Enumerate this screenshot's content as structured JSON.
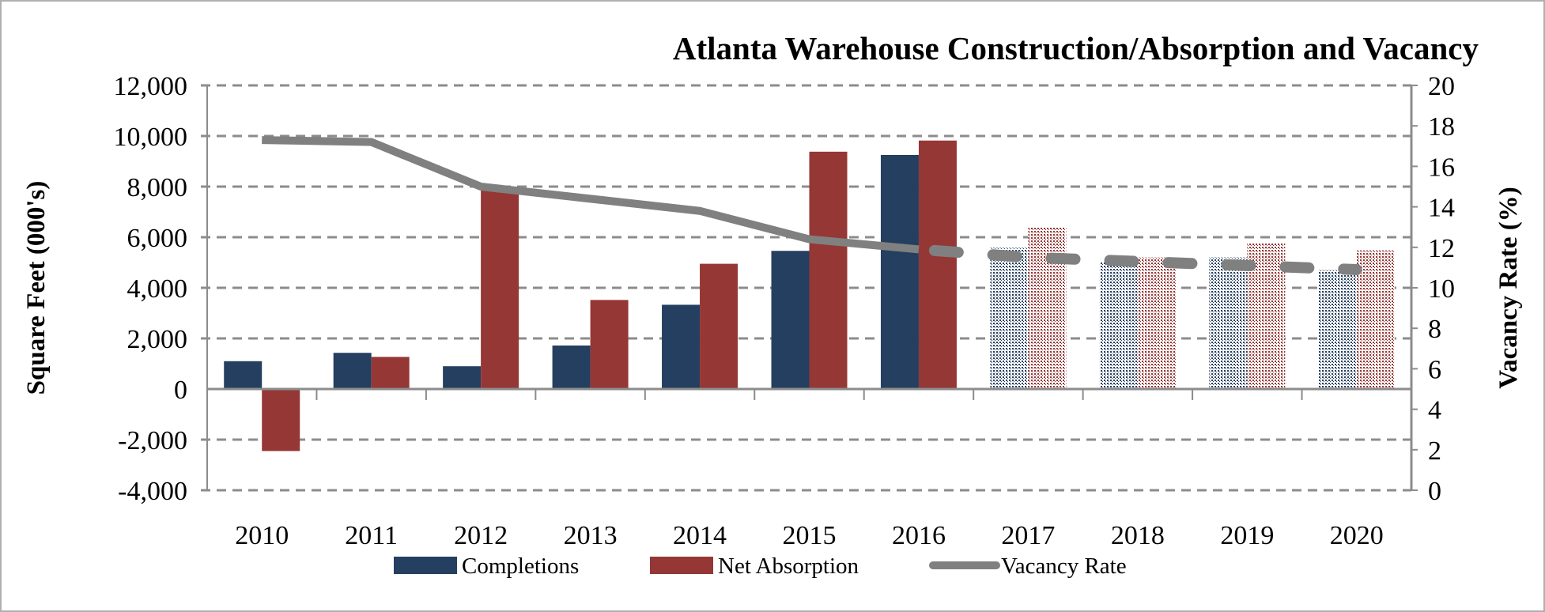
{
  "chart_data": {
    "type": "bar",
    "title": "Atlanta Warehouse Construction/Absorption and Vacancy",
    "categories": [
      "2010",
      "2011",
      "2012",
      "2013",
      "2014",
      "2015",
      "2016",
      "2017",
      "2018",
      "2019",
      "2020"
    ],
    "forecast_from": "2017",
    "ylabel": "Square Feet (000's)",
    "ylabel_right": "Vacancy Rate (%)",
    "ylim": [
      -4000,
      12000
    ],
    "yticks": [
      -4000,
      -2000,
      0,
      2000,
      4000,
      6000,
      8000,
      10000,
      12000
    ],
    "ytick_labels": [
      "-4,000",
      "-2,000",
      "0",
      "2,000",
      "4,000",
      "6,000",
      "8,000",
      "10,000",
      "12,000"
    ],
    "ylim_right": [
      0,
      20
    ],
    "yticks_right": [
      "0",
      "2",
      "4",
      "6",
      "8",
      "10",
      "12",
      "14",
      "16",
      "18",
      "20"
    ],
    "grid": true,
    "legend_position": "bottom",
    "series": [
      {
        "name": "Completions",
        "type": "bar",
        "color": "#243F60",
        "values": [
          1100,
          1430,
          900,
          1720,
          3330,
          5460,
          9250,
          5580,
          5000,
          5200,
          4700
        ]
      },
      {
        "name": "Net Absorption",
        "type": "bar",
        "color": "#953735",
        "values": [
          -2450,
          1270,
          8000,
          3520,
          4950,
          9380,
          9820,
          6380,
          5200,
          5750,
          5480
        ]
      },
      {
        "name": "Vacancy Rate",
        "type": "line",
        "axis": "right",
        "color": "#808080",
        "values": [
          17.3,
          17.2,
          15.0,
          14.4,
          13.8,
          12.4,
          11.9,
          11.5,
          11.3,
          11.1,
          10.9
        ]
      }
    ]
  }
}
